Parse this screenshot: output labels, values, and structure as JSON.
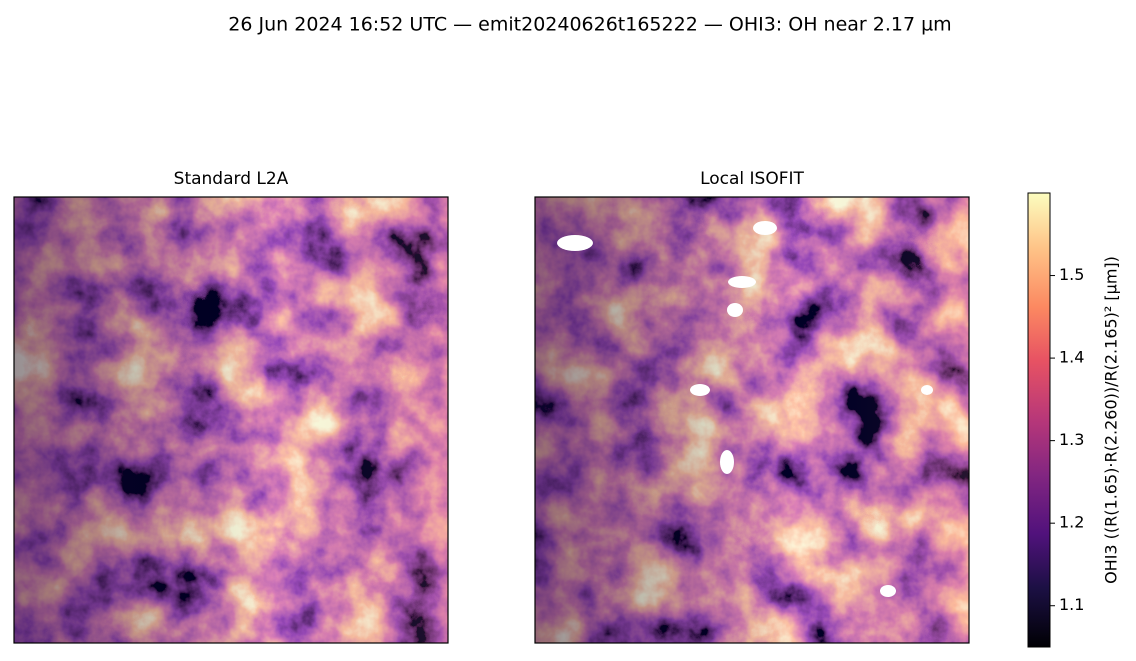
{
  "chart_data": {
    "type": "image",
    "title": "26 Jun 2024 16:52 UTC — emit20240626t165222 — OHI3: OH near 2.17 µm",
    "panels": [
      {
        "title": "Standard L2A"
      },
      {
        "title": "Local ISOFIT"
      }
    ],
    "colorbar": {
      "label": "OHI3  ((R(1.65)·R(2.260))/R(2.165)²  [µm])",
      "colormap": "magma",
      "lim": [
        1.05,
        1.6
      ],
      "ticks": [
        1.1,
        1.2,
        1.3,
        1.4,
        1.5
      ]
    }
  }
}
